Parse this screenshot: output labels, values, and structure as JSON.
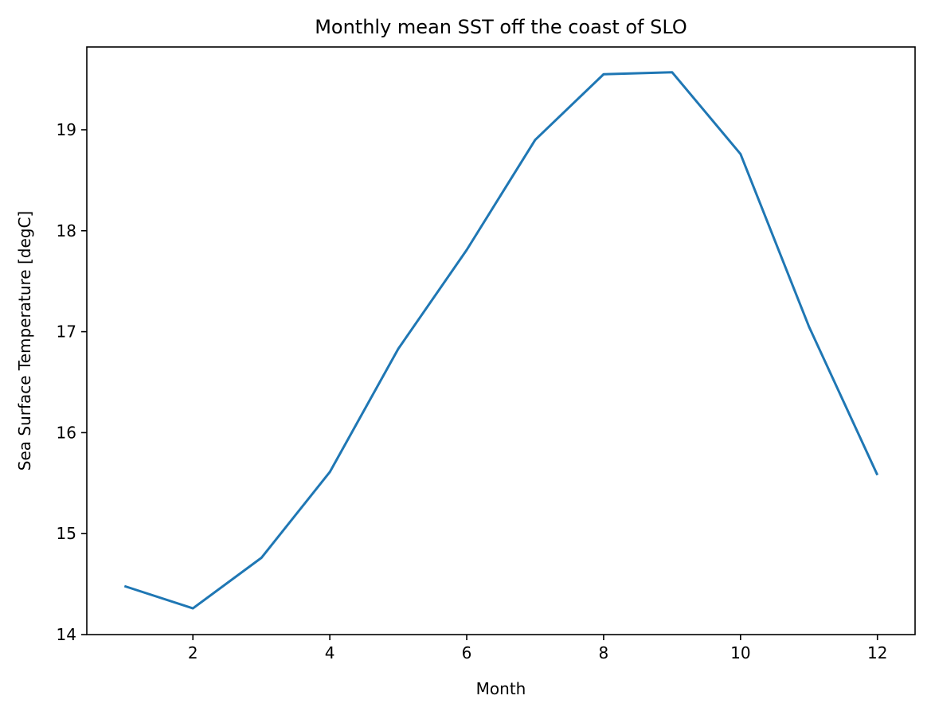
{
  "chart_data": {
    "type": "line",
    "title": "Monthly mean SST off the coast of SLO",
    "xlabel": "Month",
    "ylabel": "Sea Surface Temperature [degC]",
    "xlim": [
      0.45,
      12.55
    ],
    "ylim": [
      14,
      19.82
    ],
    "xticks": [
      2,
      4,
      6,
      8,
      10,
      12
    ],
    "yticks": [
      14,
      15,
      16,
      17,
      18,
      19
    ],
    "grid": false,
    "color": "#1f77b4",
    "series": [
      {
        "x": [
          1,
          2,
          3,
          4,
          5,
          6,
          7,
          8,
          9,
          10,
          11,
          12
        ],
        "values": [
          14.48,
          14.26,
          14.76,
          15.61,
          16.83,
          17.81,
          18.9,
          19.55,
          19.57,
          18.76,
          17.05,
          15.58
        ]
      }
    ]
  }
}
